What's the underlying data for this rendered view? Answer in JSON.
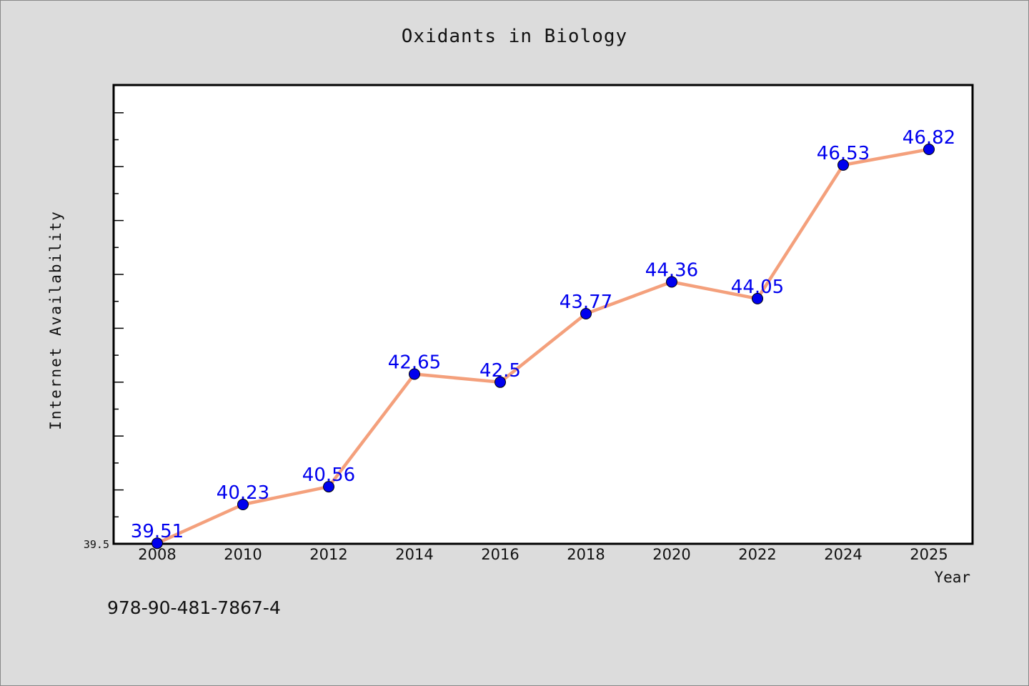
{
  "chart_data": {
    "type": "line",
    "title": "Oxidants in Biology",
    "xlabel": "Year",
    "ylabel": "Internet Availability",
    "x": [
      "2008",
      "2010",
      "2012",
      "2014",
      "2016",
      "2018",
      "2020",
      "2022",
      "2024",
      "2025"
    ],
    "series": [
      {
        "values": [
          39.51,
          40.23,
          40.56,
          42.65,
          42.5,
          43.77,
          44.36,
          44.05,
          46.53,
          46.82
        ],
        "labels": [
          "39.51",
          "40.23",
          "40.56",
          "42.65",
          "42.5",
          "43.77",
          "44.36",
          "44.05",
          "46.53",
          "46.82"
        ],
        "line_color": "#f4a07c",
        "marker_color": "#0000ee",
        "label_color": "#0000ee"
      }
    ],
    "ylim": [
      39.5,
      48.0
    ],
    "y_tick_label": "39.5",
    "grid": false,
    "legend": "none"
  },
  "footnote": "978-90-481-7867-4",
  "colors": {
    "background": "#dcdcdc",
    "plot_background": "#ffffff",
    "axis": "#000000"
  }
}
